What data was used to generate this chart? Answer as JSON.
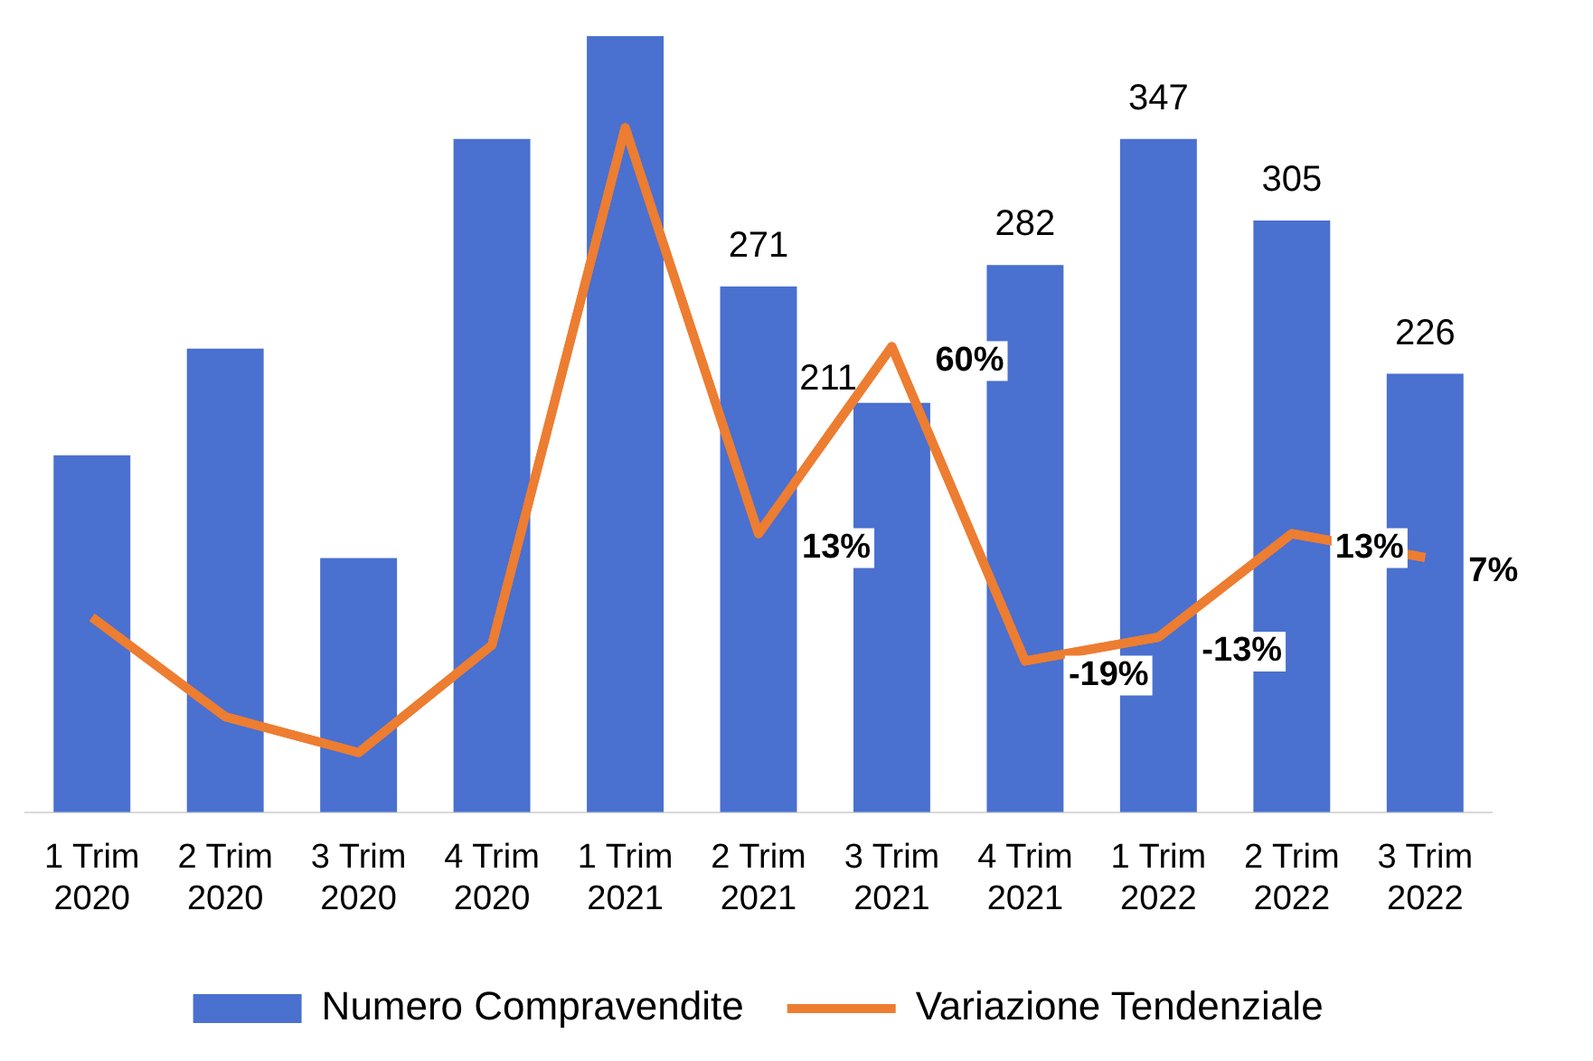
{
  "chart_data": {
    "type": "bar",
    "categories": [
      "1 Trim 2020",
      "2 Trim 2020",
      "3 Trim 2020",
      "4 Trim 2020",
      "1 Trim 2021",
      "2 Trim 2021",
      "3 Trim 2021",
      "4 Trim 2021",
      "1 Trim 2022",
      "2 Trim 2022",
      "3 Trim 2022"
    ],
    "series": [
      {
        "name": "Numero Compravendite",
        "color": "#4a70d0",
        "values": [
          184,
          239,
          131,
          347,
          400,
          271,
          211,
          282,
          347,
          305,
          226
        ],
        "value_labels": [
          null,
          null,
          null,
          null,
          null,
          "271",
          "211",
          "282",
          "347",
          "305",
          "226"
        ]
      },
      {
        "name": "Variazione Tendenziale",
        "type": "line",
        "axis": "y2",
        "color": "#ed7d31",
        "values": [
          -8,
          -33,
          -42,
          -15,
          115,
          13,
          60,
          -19,
          -13,
          13,
          7
        ],
        "value_labels": [
          null,
          null,
          null,
          null,
          null,
          "13%",
          "60%",
          "-19%",
          "-13%",
          "13%",
          "7%"
        ]
      }
    ],
    "ylim": [
      0,
      400
    ],
    "y2lim": [
      -57,
      138
    ],
    "tick_labels": "x",
    "grid": false,
    "legend": "bottom",
    "marker": "none"
  }
}
